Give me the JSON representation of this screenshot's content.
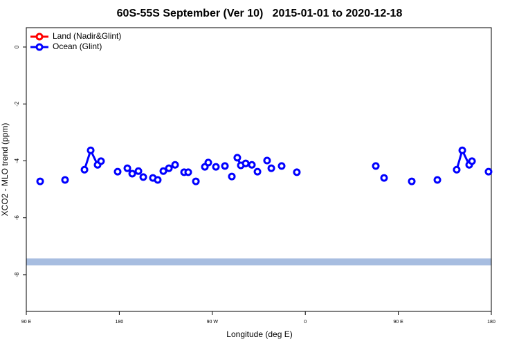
{
  "chart_data": {
    "type": "line",
    "title": "60S-55S September (Ver 10)   2015-01-01 to 2020-12-18",
    "xlabel": "Longitude (deg E)",
    "ylabel": "XCO2 - MLO trend (ppm)",
    "xlim": [
      90,
      540
    ],
    "ylim": [
      -9.29,
      0.68
    ],
    "xticks": [
      {
        "value": 90,
        "label": "90 E"
      },
      {
        "value": 180,
        "label": "180"
      },
      {
        "value": 270,
        "label": "90 W"
      },
      {
        "value": 360,
        "label": "0"
      },
      {
        "value": 450,
        "label": "90 E"
      },
      {
        "value": 540,
        "label": "180"
      }
    ],
    "yticks": [
      0,
      -2,
      -4,
      -6,
      -8
    ],
    "legend": "top-left",
    "band": {
      "value": -7.55,
      "color": "#a7bde0"
    },
    "x": [
      103.4,
      null,
      127.5,
      null,
      146.3,
      152.3,
      159.0,
      162.3,
      null,
      178.4,
      null,
      187.8,
      null,
      192.5,
      null,
      198.5,
      null,
      203.2,
      null,
      212.5,
      null,
      217.2,
      null,
      222.6,
      null,
      228.0,
      null,
      234.0,
      null,
      242.7,
      null,
      246.7,
      null,
      254.1,
      null,
      262.8,
      266.1,
      null,
      273.5,
      null,
      282.2,
      null,
      288.9,
      null,
      294.2,
      297.6,
      null,
      302.3,
      null,
      308.3,
      null,
      313.7,
      null,
      323.0,
      null,
      327.1,
      null,
      337.1,
      null,
      351.8,
      null,
      428.2,
      null,
      436.2,
      null,
      463.0,
      null,
      487.8,
      null,
      506.5,
      511.9,
      518.6,
      521.3,
      null,
      537.3
    ],
    "series": [
      {
        "name": "Land (Nadir&Glint)",
        "color": "#ff0000",
        "values": [
          null,
          null,
          null,
          null,
          null,
          null,
          null,
          null,
          null,
          null,
          null,
          null,
          null,
          null,
          null,
          null,
          null,
          null,
          null,
          null,
          null,
          null,
          null,
          null,
          null,
          null,
          null,
          null,
          null,
          null,
          null,
          null,
          null,
          null,
          null,
          null,
          null,
          null,
          null,
          null,
          null,
          null,
          null,
          null,
          null,
          null,
          null,
          null,
          null,
          null,
          null,
          null,
          null,
          null,
          null,
          null,
          null,
          null,
          null,
          null,
          null,
          null,
          null,
          null,
          null,
          null,
          null,
          null,
          null,
          null,
          null,
          null,
          null,
          null,
          null
        ]
      },
      {
        "name": "Ocean (Glint)",
        "color": "#0000ff",
        "values": [
          -4.72,
          null,
          -4.67,
          null,
          -4.31,
          -3.63,
          -4.14,
          -4.01,
          null,
          -4.38,
          null,
          -4.26,
          null,
          -4.45,
          null,
          -4.36,
          null,
          -4.57,
          null,
          -4.6,
          null,
          -4.67,
          null,
          -4.36,
          null,
          -4.26,
          null,
          -4.14,
          null,
          -4.4,
          null,
          -4.4,
          null,
          -4.72,
          null,
          -4.21,
          -4.06,
          null,
          -4.21,
          null,
          -4.18,
          null,
          -4.55,
          null,
          -3.89,
          -4.16,
          null,
          -4.09,
          null,
          -4.14,
          null,
          -4.38,
          null,
          -3.99,
          null,
          -4.26,
          null,
          -4.18,
          null,
          -4.4,
          null,
          -4.18,
          null,
          -4.6,
          null,
          -4.72,
          null,
          -4.67,
          null,
          -4.31,
          -3.63,
          -4.14,
          -4.01,
          null,
          -4.38
        ]
      }
    ]
  }
}
